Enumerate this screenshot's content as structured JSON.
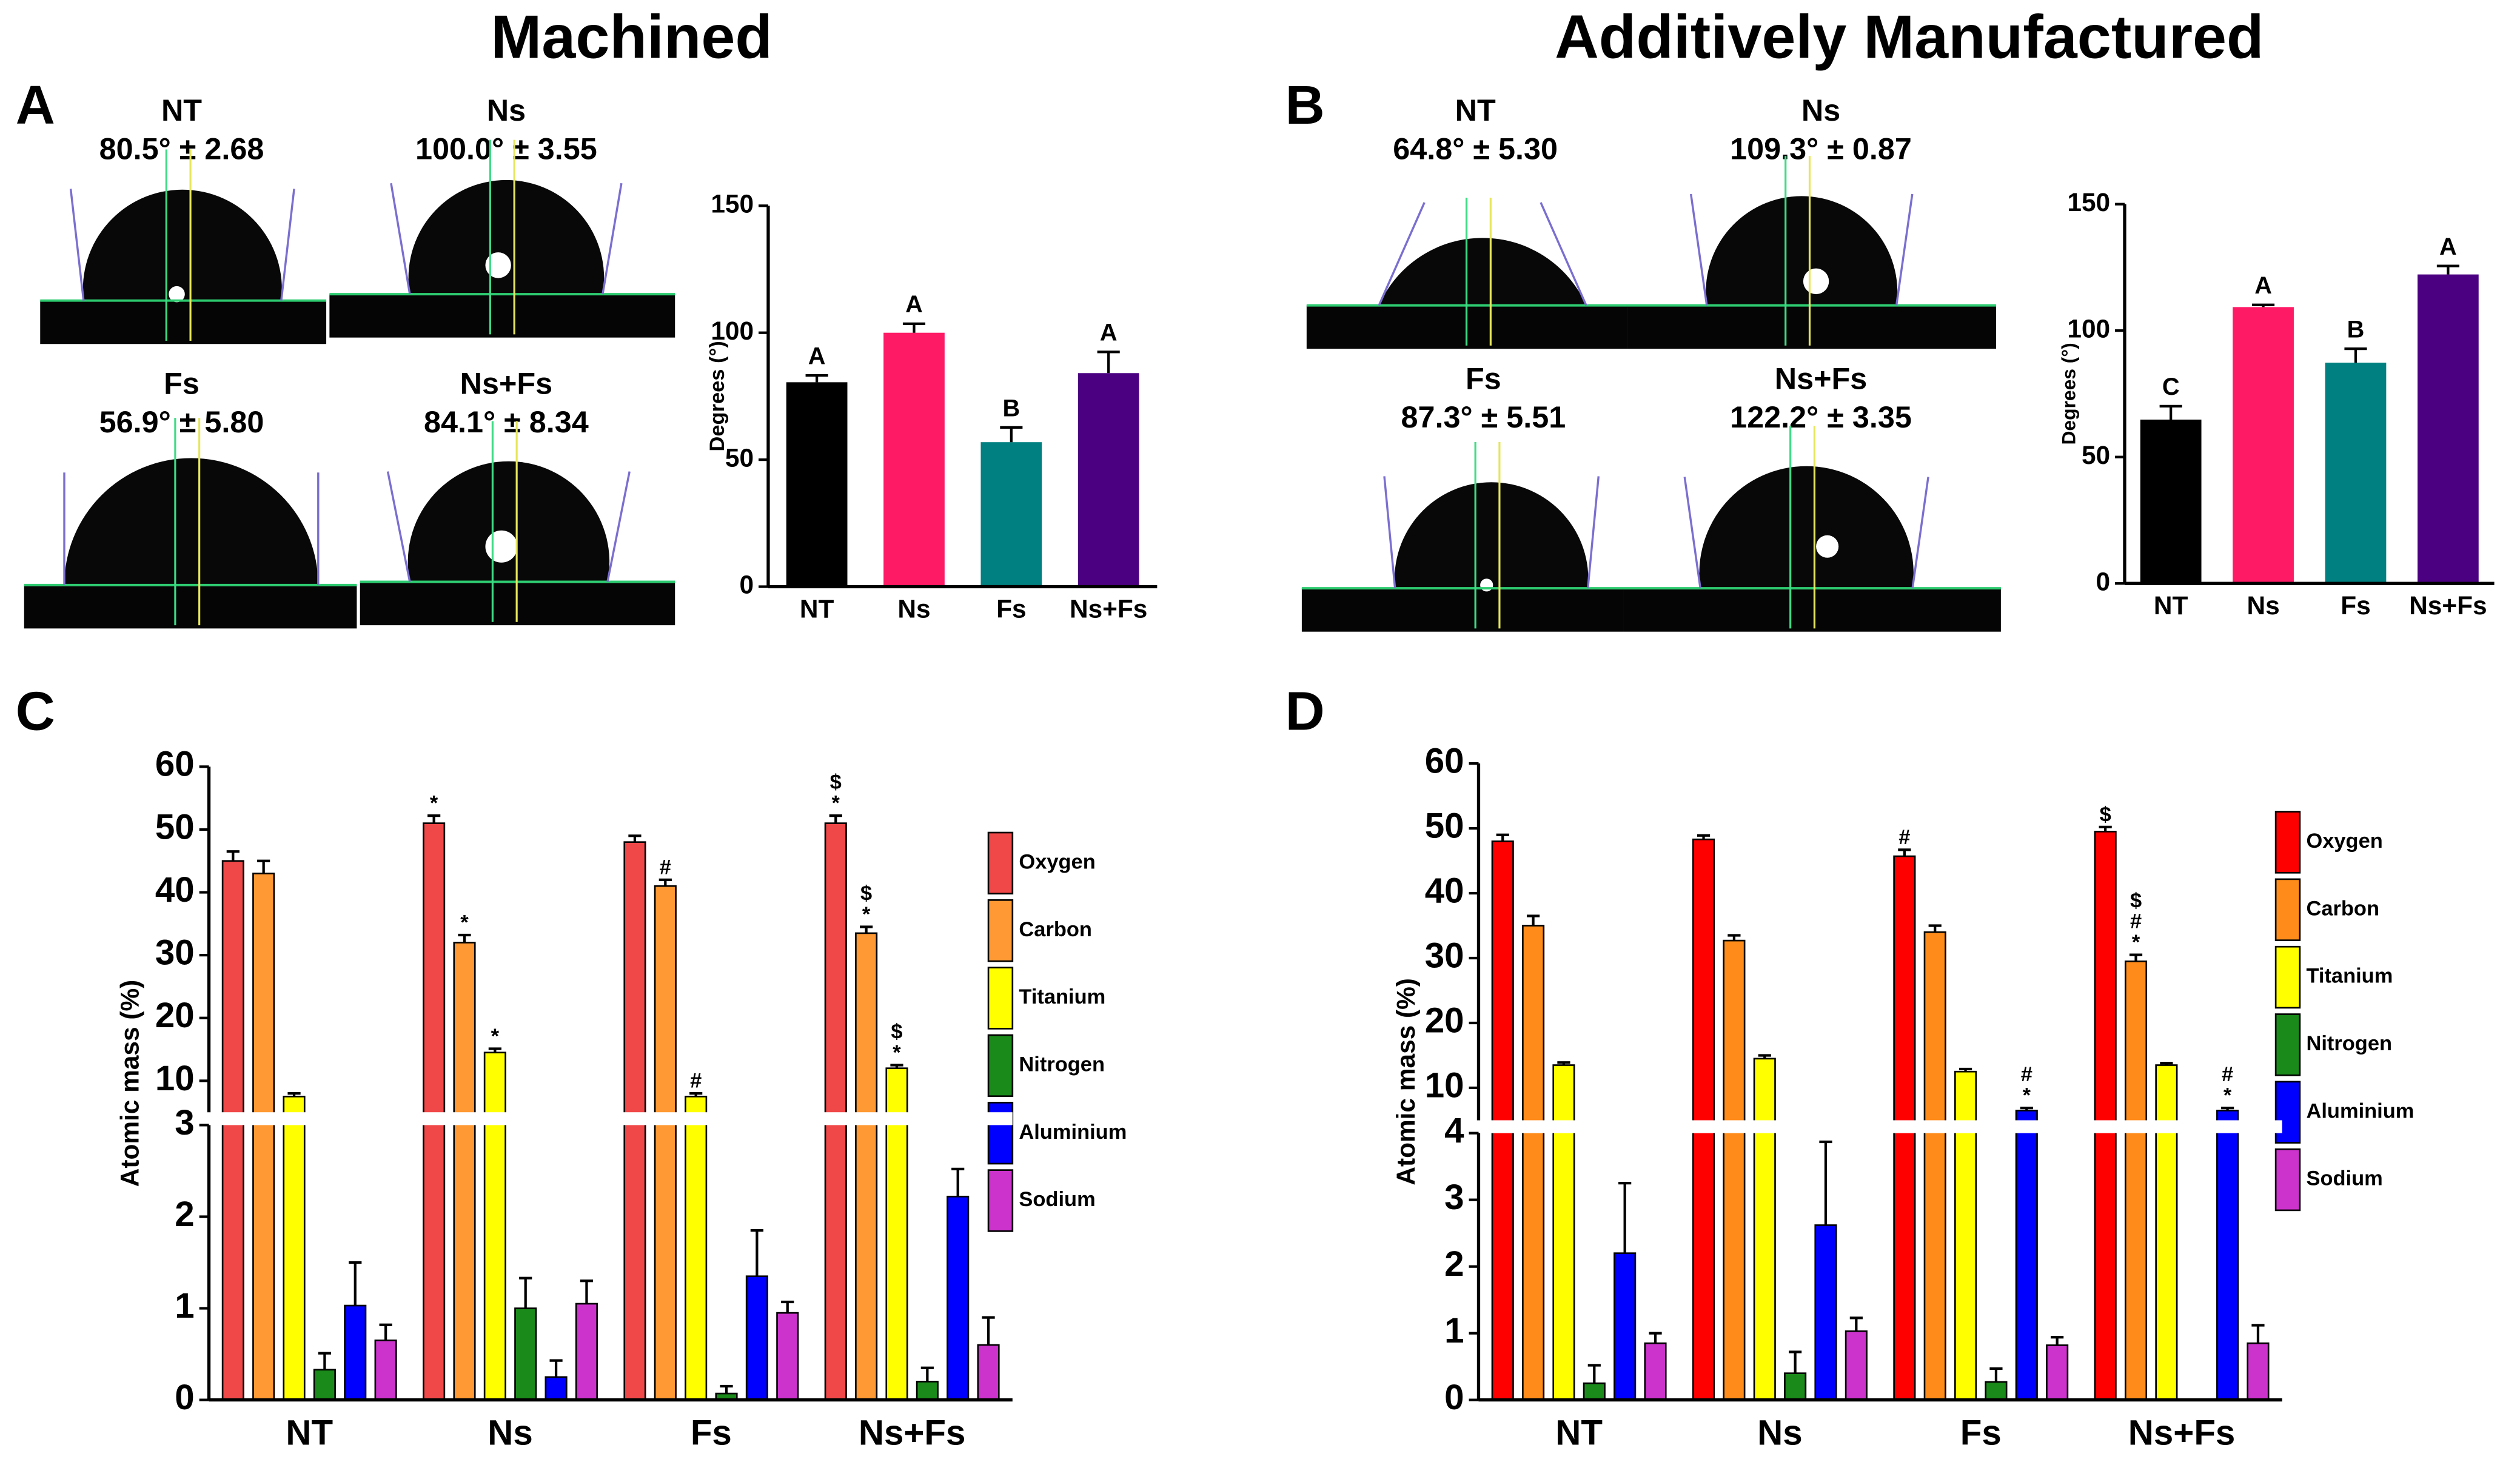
{
  "figure": {
    "headings": [
      "Machined",
      "Additively Manufactured"
    ],
    "panel_labels": [
      "A",
      "B",
      "C",
      "D"
    ],
    "droplets": [
      [
        {
          "name": "NT",
          "label": "80.5° ± 2.68"
        },
        {
          "name": "Ns",
          "label": "100.0° ± 3.55"
        },
        {
          "name": "Fs",
          "label": "56.9° ± 5.80"
        },
        {
          "name": "Ns+Fs",
          "label": "84.1° ± 8.34"
        }
      ],
      [
        {
          "name": "NT",
          "label": "64.8° ± 5.30"
        },
        {
          "name": "Ns",
          "label": "109.3° ± 0.87"
        },
        {
          "name": "Fs",
          "label": "87.3° ± 5.51"
        },
        {
          "name": "Ns+Fs",
          "label": "122.2° ± 3.35"
        }
      ]
    ]
  },
  "chart_data": [
    {
      "type": "bar",
      "categories": [
        "NT",
        "Ns",
        "Fs",
        "Ns+Fs"
      ],
      "values": [
        80.5,
        100.0,
        56.9,
        84.1
      ],
      "errors": [
        2.68,
        3.55,
        5.8,
        8.34
      ],
      "colors": [
        "#000000",
        "#ff1a66",
        "#008080",
        "#4b0082"
      ],
      "letters": [
        "A",
        "A",
        "B",
        "A"
      ],
      "ylabel": "Degrees (°)",
      "ylim": [
        0,
        150
      ],
      "yticks": [
        0,
        50,
        100,
        150
      ]
    },
    {
      "type": "bar",
      "categories": [
        "NT",
        "Ns",
        "Fs",
        "Ns+Fs"
      ],
      "values": [
        64.8,
        109.3,
        87.3,
        122.2
      ],
      "errors": [
        5.3,
        0.87,
        5.51,
        3.35
      ],
      "colors": [
        "#000000",
        "#ff1a66",
        "#008080",
        "#4b0082"
      ],
      "letters": [
        "C",
        "A",
        "B",
        "A"
      ],
      "ylabel": "Degrees (°)",
      "ylim": [
        0,
        150
      ],
      "yticks": [
        0,
        50,
        100,
        150
      ]
    },
    {
      "type": "grouped_bar",
      "categories": [
        "NT",
        "Ns",
        "Fs",
        "Ns+Fs"
      ],
      "ylabel": "Atomic mass (%)",
      "ylim": [
        0,
        60
      ],
      "axis_break": [
        3,
        5
      ],
      "yticks": [
        0,
        1,
        2,
        3,
        10,
        20,
        30,
        40,
        50,
        60
      ],
      "legend": "right",
      "series": [
        {
          "name": "Oxygen",
          "color": "#f04848",
          "values": [
            45,
            51,
            48,
            51
          ],
          "errors": [
            1.5,
            1.2,
            1.0,
            1.2
          ],
          "significance": [
            null,
            [
              "*"
            ],
            null,
            [
              "$",
              "*"
            ]
          ]
        },
        {
          "name": "Carbon",
          "color": "#ff9933",
          "values": [
            43,
            32,
            41,
            33.5
          ],
          "errors": [
            2.0,
            1.2,
            1.0,
            1.0
          ],
          "significance": [
            null,
            [
              "*"
            ],
            [
              "#"
            ],
            [
              "$",
              "*"
            ]
          ]
        },
        {
          "name": "Titanium",
          "color": "#ffff00",
          "values": [
            7.5,
            14.5,
            7.5,
            12
          ],
          "errors": [
            0.5,
            0.6,
            0.5,
            0.5
          ],
          "significance": [
            null,
            [
              "*"
            ],
            [
              "#"
            ],
            [
              "$",
              "*"
            ]
          ]
        },
        {
          "name": "Nitrogen",
          "color": "#1a8a1a",
          "values": [
            0.33,
            1.0,
            0.07,
            0.2
          ],
          "errors": [
            0.18,
            0.33,
            0.08,
            0.15
          ]
        },
        {
          "name": "Aluminium",
          "color": "#0000ff",
          "values": [
            1.03,
            0.25,
            1.35,
            2.22
          ],
          "errors": [
            0.47,
            0.18,
            0.5,
            0.3
          ]
        },
        {
          "name": "Sodium",
          "color": "#cc33cc",
          "values": [
            0.65,
            1.05,
            0.95,
            0.6
          ],
          "errors": [
            0.17,
            0.25,
            0.12,
            0.3
          ]
        }
      ]
    },
    {
      "type": "grouped_bar",
      "categories": [
        "NT",
        "Ns",
        "Fs",
        "Ns+Fs"
      ],
      "ylabel": "Atomic mass (%)",
      "ylim": [
        0,
        60
      ],
      "axis_break": [
        4,
        5
      ],
      "yticks": [
        0,
        1,
        2,
        3,
        4,
        10,
        20,
        30,
        40,
        50,
        60
      ],
      "legend": "right",
      "series": [
        {
          "name": "Oxygen",
          "color": "#ff0000",
          "values": [
            48,
            48.3,
            45.7,
            49.5
          ],
          "errors": [
            1.0,
            0.6,
            1.0,
            0.7
          ],
          "significance": [
            null,
            null,
            [
              "#"
            ],
            [
              "$"
            ]
          ]
        },
        {
          "name": "Carbon",
          "color": "#ff8c1a",
          "values": [
            35,
            32.7,
            34,
            29.5
          ],
          "errors": [
            1.5,
            0.8,
            1.0,
            1.0
          ],
          "significance": [
            null,
            null,
            null,
            [
              "$",
              "#",
              "*"
            ]
          ]
        },
        {
          "name": "Titanium",
          "color": "#ffff00",
          "values": [
            13.5,
            14.5,
            12.5,
            13.5
          ],
          "errors": [
            0.4,
            0.5,
            0.4,
            0.3
          ]
        },
        {
          "name": "Nitrogen",
          "color": "#1a8a1a",
          "values": [
            0.25,
            0.4,
            0.27,
            null
          ],
          "errors": [
            0.27,
            0.32,
            0.2,
            null
          ]
        },
        {
          "name": "Aluminium",
          "color": "#0000ff",
          "values": [
            2.2,
            2.62,
            6.5,
            6.5
          ],
          "errors": [
            1.05,
            1.25,
            0.4,
            0.4
          ],
          "significance": [
            null,
            null,
            [
              "#",
              "*"
            ],
            [
              "#",
              "*"
            ]
          ]
        },
        {
          "name": "Sodium",
          "color": "#cc33cc",
          "values": [
            0.85,
            1.03,
            0.82,
            0.85
          ],
          "errors": [
            0.15,
            0.2,
            0.12,
            0.27
          ]
        }
      ]
    }
  ]
}
